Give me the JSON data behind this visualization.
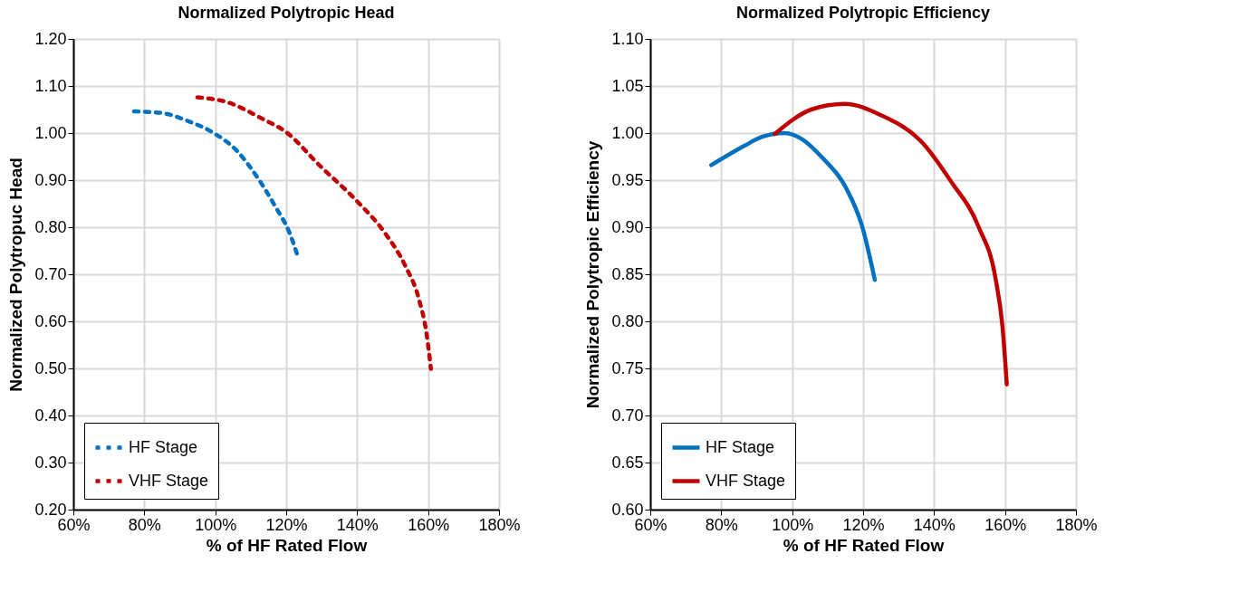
{
  "chart_data": [
    {
      "type": "line",
      "title": "Normalized Polytropic Head",
      "xlabel": "% of HF Rated Flow",
      "ylabel": "Normalized Polytropuc  Head",
      "xlim": [
        60,
        180
      ],
      "xticks": [
        {
          "value": 60,
          "label": "60%"
        },
        {
          "value": 80,
          "label": "80%"
        },
        {
          "value": 100,
          "label": "100%"
        },
        {
          "value": 120,
          "label": "120%"
        },
        {
          "value": 140,
          "label": "140%"
        },
        {
          "value": 160,
          "label": "160%"
        },
        {
          "value": 180,
          "label": "180%"
        }
      ],
      "ylim": [
        0.2,
        1.2
      ],
      "yticks": [
        {
          "value": 0.2,
          "label": "0.20"
        },
        {
          "value": 0.3,
          "label": "0.30"
        },
        {
          "value": 0.4,
          "label": "0.40"
        },
        {
          "value": 0.5,
          "label": "0.50"
        },
        {
          "value": 0.6,
          "label": "0.60"
        },
        {
          "value": 0.7,
          "label": "0.70"
        },
        {
          "value": 0.8,
          "label": "0.80"
        },
        {
          "value": 0.9,
          "label": "0.90"
        },
        {
          "value": 1.0,
          "label": "1.00"
        },
        {
          "value": 1.1,
          "label": "1.10"
        },
        {
          "value": 1.2,
          "label": "1.20"
        }
      ],
      "grid": true,
      "legend": "bottom left",
      "line_style": "dashed",
      "marker": "none",
      "series": [
        {
          "name": "HF Stage",
          "color": "#0070c0",
          "x": [
            77.1,
            84.6,
            92.5,
            99.6,
            106,
            112.3,
            117,
            121,
            123.4
          ],
          "values": [
            1.046,
            1.043,
            1.025,
            1.0,
            0.963,
            0.901,
            0.843,
            0.787,
            0.735
          ]
        },
        {
          "name": "VHF Stage",
          "color": "#c00000",
          "x": [
            95,
            103.6,
            113.1,
            119.8,
            129.7,
            140,
            147.9,
            153.5,
            157.5,
            159.5,
            160.8
          ],
          "values": [
            1.076,
            1.065,
            1.031,
            1.003,
            0.929,
            0.855,
            0.787,
            0.719,
            0.645,
            0.577,
            0.499
          ]
        }
      ]
    },
    {
      "type": "line",
      "title": "Normalized Polytropic Efficiency",
      "xlabel": "% of HF Rated Flow",
      "ylabel": "Normalized Polytropic  Efficiency",
      "xlim": [
        60,
        180
      ],
      "xticks": [
        {
          "value": 60,
          "label": "60%"
        },
        {
          "value": 80,
          "label": "80%"
        },
        {
          "value": 100,
          "label": "100%"
        },
        {
          "value": 120,
          "label": "120%"
        },
        {
          "value": 140,
          "label": "140%"
        },
        {
          "value": 160,
          "label": "160%"
        },
        {
          "value": 180,
          "label": "180%"
        }
      ],
      "ylim": [
        0.6,
        1.1
      ],
      "yticks": [
        {
          "value": 0.6,
          "label": "0.60"
        },
        {
          "value": 0.65,
          "label": "0.65"
        },
        {
          "value": 0.7,
          "label": "0.70"
        },
        {
          "value": 0.75,
          "label": "0.75"
        },
        {
          "value": 0.8,
          "label": "0.80"
        },
        {
          "value": 0.85,
          "label": "0.85"
        },
        {
          "value": 0.9,
          "label": "0.90"
        },
        {
          "value": 0.95,
          "label": "0.95"
        },
        {
          "value": 1.0,
          "label": "1.00"
        },
        {
          "value": 1.05,
          "label": "1.05"
        },
        {
          "value": 1.1,
          "label": "1.10"
        }
      ],
      "grid": true,
      "legend": "bottom left",
      "line_style": "solid",
      "marker": "none",
      "series": [
        {
          "name": "HF Stage",
          "color": "#0070c0",
          "x": [
            77.2,
            86.8,
            91.5,
            97.9,
            103,
            108.7,
            115,
            119.8,
            123.3
          ],
          "values": [
            0.966,
            0.987,
            0.996,
            1.0,
            0.993,
            0.973,
            0.943,
            0.9,
            0.844
          ]
        },
        {
          "name": "VHF Stage",
          "color": "#c00000",
          "x": [
            95.1,
            105.4,
            114.8,
            125,
            136.9,
            144.7,
            152.6,
            157.3,
            159.3,
            160.5
          ],
          "values": [
            0.999,
            1.025,
            1.031,
            1.019,
            0.989,
            0.949,
            0.9,
            0.846,
            0.794,
            0.733
          ]
        }
      ]
    }
  ]
}
